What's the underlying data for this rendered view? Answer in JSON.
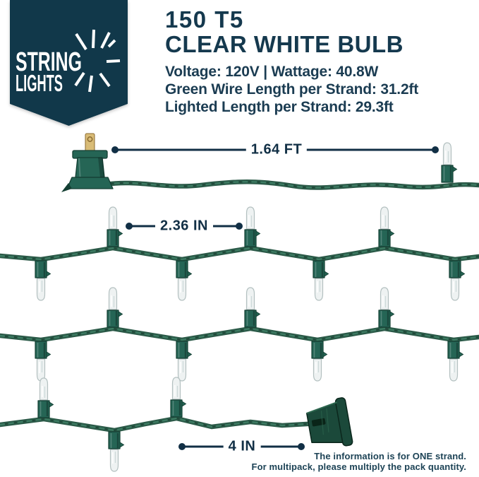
{
  "brand": {
    "line1": "STRING",
    "line2": "LIGHTS"
  },
  "header": {
    "title": "150 T5",
    "subtitle": "CLEAR WHITE BULB",
    "specs": [
      "Voltage: 120V | Wattage: 40.8W",
      "Green Wire Length per Strand: 31.2ft",
      "Lighted Length per Strand: 29.3ft"
    ]
  },
  "measurements": {
    "plug_to_first_bulb": "1.64 FT",
    "bulb_spacing": "2.36 IN",
    "end_tail": "4 IN"
  },
  "note": {
    "line1": "The information is for ONE strand.",
    "line2": "For multipack, please multiply the pack quantity."
  },
  "colors": {
    "brand_navy": "#11384a",
    "text_teal": "#15394e",
    "measure_navy": "#112f45",
    "wire_dark": "#2b5a48",
    "wire_light": "#3f8066",
    "wire_shadow": "#16382c",
    "socket_green": "#256555",
    "socket_dark": "#143f33",
    "bulb_white": "#eef2f2",
    "bulb_edge": "#b3c0c0",
    "brass": "#d9bc77",
    "brass_edge": "#8a6a30",
    "connector_green": "#1b493a",
    "connector_dark": "#0b261c"
  }
}
